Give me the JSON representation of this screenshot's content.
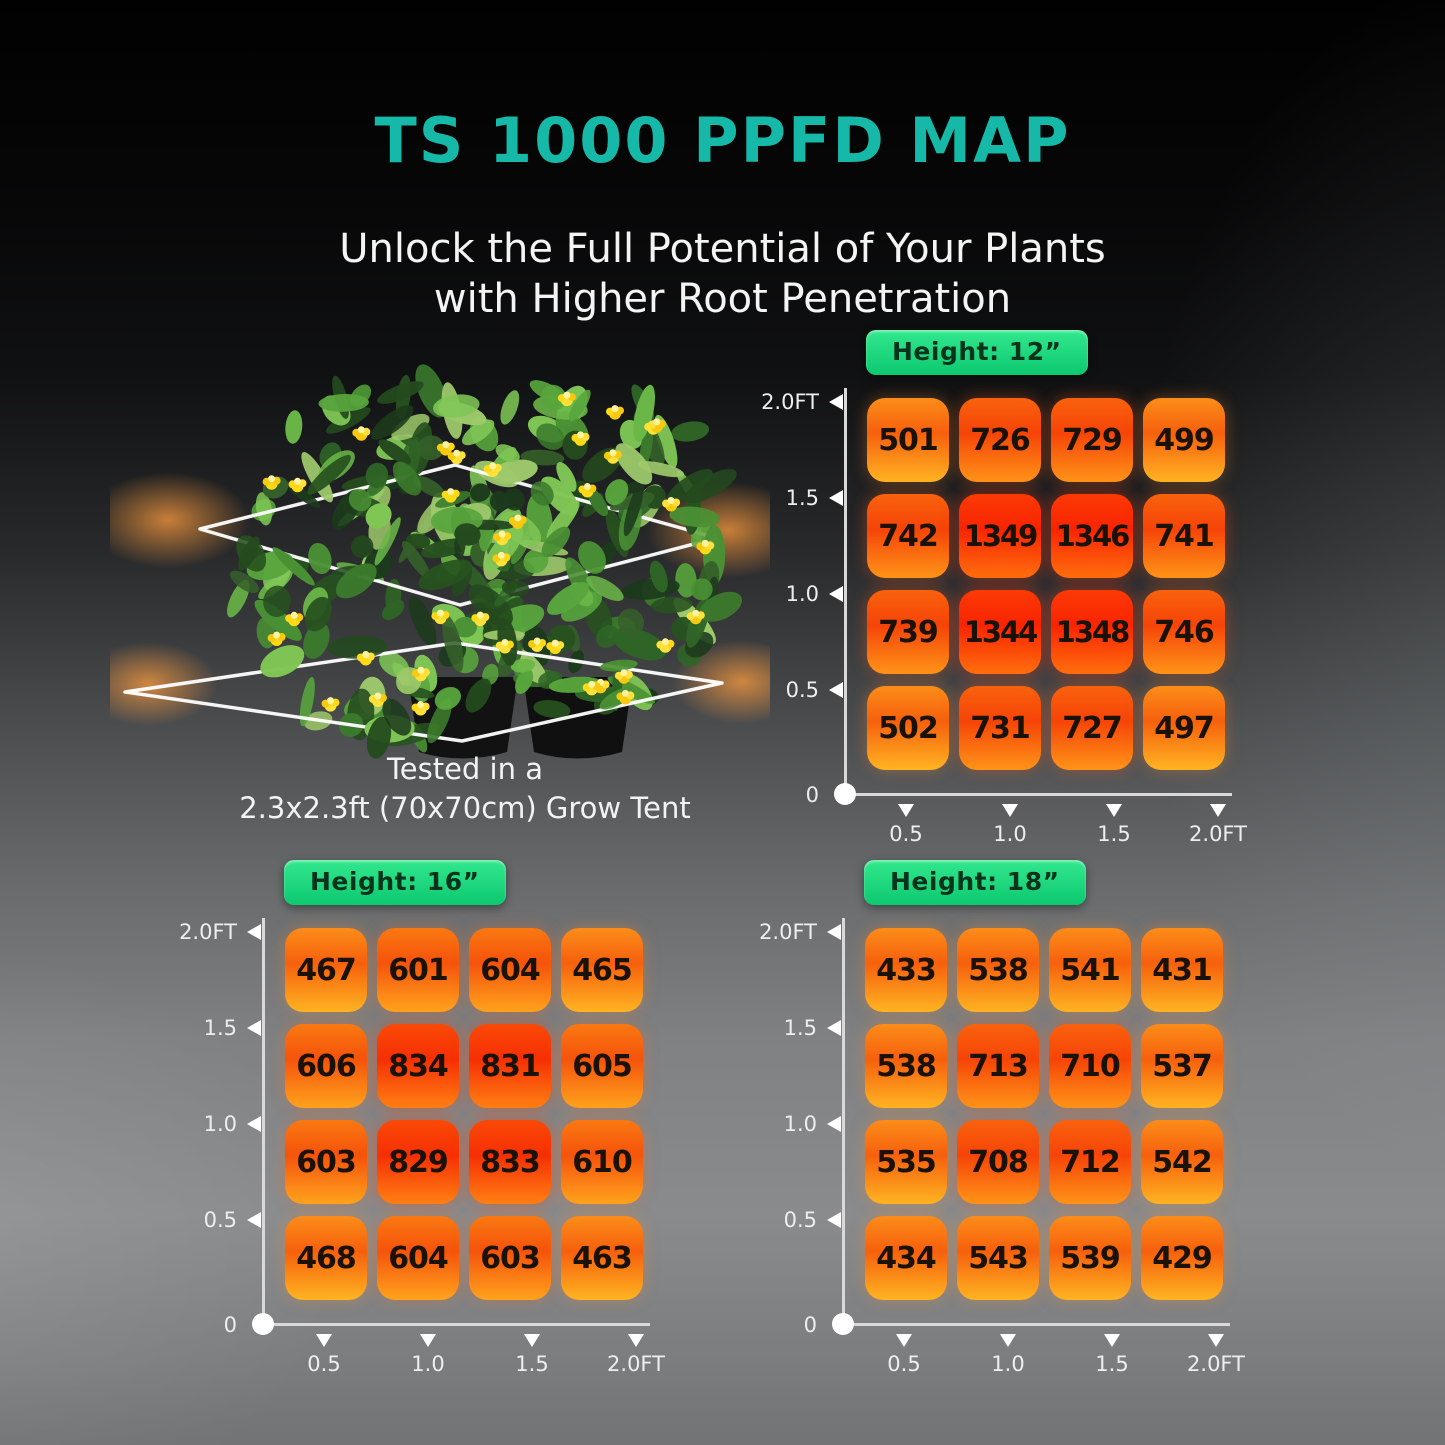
{
  "header": {
    "title": "TS 1000 PPFD MAP",
    "subtitle_line1": "Unlock the Full Potential of Your Plants",
    "subtitle_line2": "with Higher Root Penetration"
  },
  "plant": {
    "caption_line1": "Tested in a",
    "caption_line2": "2.3x2.3ft (70x70cm) Grow Tent"
  },
  "chart_data": [
    {
      "type": "heatmap",
      "title": "Height: 12”",
      "x_ticks": [
        "0.5",
        "1.0",
        "1.5",
        "2.0FT"
      ],
      "y_ticks": [
        "2.0FT",
        "1.5",
        "1.0",
        "0.5",
        "0"
      ],
      "unit": "ft",
      "values": [
        [
          501,
          726,
          729,
          499
        ],
        [
          742,
          1349,
          1346,
          741
        ],
        [
          739,
          1344,
          1348,
          746
        ],
        [
          502,
          731,
          727,
          497
        ]
      ]
    },
    {
      "type": "heatmap",
      "title": "Height: 16”",
      "x_ticks": [
        "0.5",
        "1.0",
        "1.5",
        "2.0FT"
      ],
      "y_ticks": [
        "2.0FT",
        "1.5",
        "1.0",
        "0.5",
        "0"
      ],
      "unit": "ft",
      "values": [
        [
          467,
          601,
          604,
          465
        ],
        [
          606,
          834,
          831,
          605
        ],
        [
          603,
          829,
          833,
          610
        ],
        [
          468,
          604,
          603,
          463
        ]
      ]
    },
    {
      "type": "heatmap",
      "title": "Height: 18”",
      "x_ticks": [
        "0.5",
        "1.0",
        "1.5",
        "2.0FT"
      ],
      "y_ticks": [
        "2.0FT",
        "1.5",
        "1.0",
        "0.5",
        "0"
      ],
      "unit": "ft",
      "values": [
        [
          433,
          538,
          541,
          431
        ],
        [
          538,
          713,
          710,
          537
        ],
        [
          535,
          708,
          712,
          542
        ],
        [
          434,
          543,
          539,
          429
        ]
      ]
    }
  ],
  "colors": {
    "accent_teal": "#16b8a8",
    "badge_green_top": "#33e88e",
    "badge_green_bottom": "#0cc86f",
    "badge_text": "#07331d",
    "axis": "#d9d9d9",
    "cell_number": "#1a1206",
    "heat_scale": [
      {
        "max": 560,
        "top": "#fc8d19",
        "mid": "#f6600d",
        "bottom": "#ffb422",
        "glow": "rgba(255,140,40,0.35)"
      },
      {
        "max": 660,
        "top": "#fa7912",
        "mid": "#f5530b",
        "bottom": "#ffa31d",
        "glow": "rgba(255,110,30,0.35)"
      },
      {
        "max": 780,
        "top": "#f9620d",
        "mid": "#f64408",
        "bottom": "#ff9418",
        "glow": "rgba(252,90,20,0.40)"
      },
      {
        "max": 1000,
        "top": "#fa4a07",
        "mid": "#f62f04",
        "bottom": "#ff8013",
        "glow": "rgba(250,70,10,0.45)"
      },
      {
        "max": 99999,
        "top": "#fc3a04",
        "mid": "#f92402",
        "bottom": "#ff6f0e",
        "glow": "rgba(250,50,5,0.50)"
      }
    ]
  }
}
